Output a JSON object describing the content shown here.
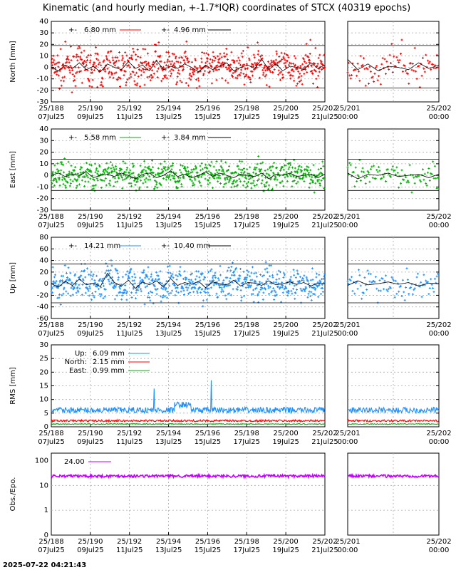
{
  "title": "Kinematic (and hourly median, +-1.7*IQR) coordinates of STCX (40319 epochs)",
  "timestamp": "2025-07-22 04:21:43",
  "x_ticks_main": [
    {
      "doy": "25/188",
      "date": "07Jul25"
    },
    {
      "doy": "25/190",
      "date": "09Jul25"
    },
    {
      "doy": "25/192",
      "date": "11Jul25"
    },
    {
      "doy": "25/194",
      "date": "13Jul25"
    },
    {
      "doy": "25/196",
      "date": "15Jul25"
    },
    {
      "doy": "25/198",
      "date": "17Jul25"
    },
    {
      "doy": "25/200",
      "date": "19Jul25"
    },
    {
      "doy": "25/202",
      "date": "21Jul25"
    }
  ],
  "x_ticks_zoom": [
    {
      "doy": "25/201",
      "date": "00:00"
    },
    {
      "doy": "25/202",
      "date": "00:00"
    }
  ],
  "chart_data": [
    {
      "type": "scatter",
      "id": "north",
      "ylabel": "North [mm]",
      "ylim": [
        -30,
        40
      ],
      "yticks": [
        -30,
        -20,
        -10,
        0,
        10,
        20,
        30,
        40
      ],
      "color": "#ff0000",
      "legend": [
        {
          "marker": "+-",
          "label": "6.80 mm"
        },
        {
          "marker": "+-",
          "label": "4.96 mm"
        }
      ],
      "iqr_lines": [
        19,
        -18
      ],
      "series_note": "kinematic epochs with hourly median",
      "x_range": [
        "25/188",
        "25/202"
      ],
      "median": [
        0,
        -3,
        2,
        -1,
        4,
        -2,
        1,
        -4,
        3,
        0,
        -2,
        5,
        -1,
        2,
        -3,
        6,
        -2,
        1,
        -1,
        3,
        0,
        -4,
        2,
        -2,
        1,
        4,
        -3,
        0,
        2,
        -1,
        7,
        -2,
        3,
        -3,
        1,
        0,
        -2,
        4,
        -1,
        2
      ]
    },
    {
      "type": "scatter",
      "id": "east",
      "ylabel": "East [mm]",
      "ylim": [
        -30,
        40
      ],
      "yticks": [
        -30,
        -20,
        -10,
        0,
        10,
        20,
        30,
        40
      ],
      "color": "#00b000",
      "legend": [
        {
          "marker": "+-",
          "label": "5.58 mm"
        },
        {
          "marker": "+-",
          "label": "3.84 mm"
        }
      ],
      "iqr_lines": [
        14,
        -13
      ],
      "median": [
        0,
        2,
        -1,
        1,
        0,
        3,
        -2,
        0,
        1,
        -1,
        2,
        0,
        -3,
        1,
        2,
        -2,
        0,
        4,
        -1,
        1,
        -2,
        0,
        3,
        -1,
        2,
        0,
        -2,
        1,
        0,
        -1,
        2,
        -3,
        1,
        0,
        2,
        -1,
        0,
        1,
        -2,
        1
      ]
    },
    {
      "type": "scatter",
      "id": "up",
      "ylabel": "Up [mm]",
      "ylim": [
        -60,
        80
      ],
      "yticks": [
        -60,
        -40,
        -20,
        0,
        20,
        40,
        60,
        80
      ],
      "color": "#1e90ff",
      "legend": [
        {
          "marker": "+-",
          "label": "14.21 mm"
        },
        {
          "marker": "+-",
          "label": "10.40 mm"
        }
      ],
      "iqr_lines": [
        34,
        -33
      ],
      "median": [
        0,
        -6,
        4,
        -3,
        8,
        -2,
        1,
        -5,
        18,
        2,
        -4,
        6,
        -8,
        3,
        -2,
        5,
        -6,
        9,
        -3,
        2,
        -1,
        4,
        -7,
        3,
        0,
        -2,
        6,
        -4,
        2,
        1,
        -3,
        5,
        -2,
        0,
        3,
        -1,
        2,
        -4,
        1,
        0
      ]
    },
    {
      "type": "line",
      "id": "rms",
      "ylabel": "RMS [mm]",
      "ylim": [
        0,
        30
      ],
      "yticks": [
        0,
        5,
        10,
        15,
        20,
        25,
        30
      ],
      "series": [
        {
          "name": "Up:",
          "value_label": "6.09 mm",
          "color": "#1e90ff",
          "level": 6.1
        },
        {
          "name": "North:",
          "value_label": "2.15 mm",
          "color": "#ff0000",
          "level": 2.2
        },
        {
          "name": "East:",
          "value_label": "0.99 mm",
          "color": "#00b000",
          "level": 1.0
        }
      ]
    },
    {
      "type": "line",
      "id": "obs",
      "ylabel": "Obs./Epo.",
      "ylim": [
        0,
        100
      ],
      "scale": "log",
      "ytick_labels": [
        "0",
        "1",
        "10",
        "100"
      ],
      "legend": [
        {
          "label": "24.00",
          "color": "#c000ff"
        }
      ],
      "level": 24
    }
  ]
}
